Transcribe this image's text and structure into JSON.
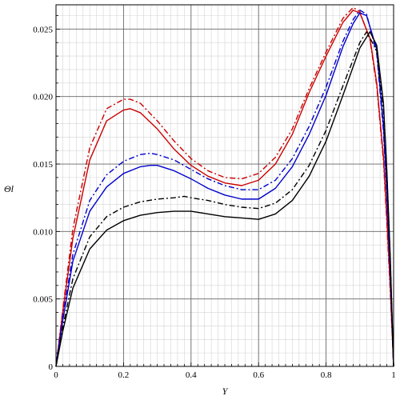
{
  "chart_data": {
    "type": "line",
    "title": "",
    "xlabel": "Y",
    "ylabel": "Θl",
    "xlim": [
      0,
      1
    ],
    "ylim": [
      0,
      0.0268
    ],
    "grid": true,
    "x_ticks": [
      {
        "value": 0,
        "label": "0"
      },
      {
        "value": 0.2,
        "label": "0.2"
      },
      {
        "value": 0.4,
        "label": "0.4"
      },
      {
        "value": 0.6,
        "label": "0.6"
      },
      {
        "value": 0.8,
        "label": "0.8"
      },
      {
        "value": 1,
        "label": "1"
      }
    ],
    "y_ticks": [
      {
        "value": 0,
        "label": "0"
      },
      {
        "value": 0.005,
        "label": "0.005"
      },
      {
        "value": 0.01,
        "label": "0.010"
      },
      {
        "value": 0.015,
        "label": "0.015"
      },
      {
        "value": 0.02,
        "label": "0.020"
      },
      {
        "value": 0.025,
        "label": "0.025"
      }
    ],
    "series": [
      {
        "color": "#cc0000",
        "style": "solid",
        "x": [
          0,
          0.02,
          0.05,
          0.1,
          0.15,
          0.2,
          0.22,
          0.25,
          0.3,
          0.35,
          0.4,
          0.45,
          0.5,
          0.55,
          0.6,
          0.65,
          0.7,
          0.75,
          0.8,
          0.85,
          0.88,
          0.9,
          0.93,
          0.95,
          0.97,
          0.98,
          0.99,
          1
        ],
        "y": [
          0,
          0.004,
          0.0095,
          0.0153,
          0.0182,
          0.019,
          0.0191,
          0.0188,
          0.0176,
          0.0161,
          0.0149,
          0.0141,
          0.0136,
          0.0134,
          0.0138,
          0.015,
          0.0172,
          0.0203,
          0.023,
          0.0255,
          0.0264,
          0.0262,
          0.0243,
          0.021,
          0.0155,
          0.011,
          0.006,
          0
        ]
      },
      {
        "color": "#cc0000",
        "style": "dashdot",
        "x": [
          0,
          0.02,
          0.05,
          0.1,
          0.15,
          0.2,
          0.22,
          0.25,
          0.3,
          0.35,
          0.4,
          0.45,
          0.5,
          0.55,
          0.6,
          0.65,
          0.7,
          0.75,
          0.8,
          0.85,
          0.88,
          0.9,
          0.93,
          0.95,
          0.97,
          0.98,
          0.99,
          1
        ],
        "y": [
          0,
          0.0042,
          0.0102,
          0.0162,
          0.0191,
          0.0198,
          0.0198,
          0.0195,
          0.0182,
          0.0167,
          0.0154,
          0.0145,
          0.014,
          0.0139,
          0.0143,
          0.0155,
          0.0176,
          0.0206,
          0.0233,
          0.0258,
          0.0266,
          0.0263,
          0.0242,
          0.0208,
          0.0152,
          0.0106,
          0.0056,
          0
        ]
      },
      {
        "color": "#0000cc",
        "style": "solid",
        "x": [
          0,
          0.02,
          0.05,
          0.1,
          0.15,
          0.2,
          0.25,
          0.28,
          0.3,
          0.35,
          0.4,
          0.45,
          0.5,
          0.55,
          0.6,
          0.65,
          0.7,
          0.75,
          0.8,
          0.85,
          0.88,
          0.9,
          0.92,
          0.95,
          0.97,
          0.98,
          0.99,
          1
        ],
        "y": [
          0,
          0.0034,
          0.0078,
          0.0115,
          0.0133,
          0.0143,
          0.0148,
          0.0149,
          0.0149,
          0.0145,
          0.0139,
          0.0132,
          0.0127,
          0.0124,
          0.0124,
          0.0132,
          0.0148,
          0.0172,
          0.0201,
          0.0237,
          0.0254,
          0.0262,
          0.026,
          0.0235,
          0.0178,
          0.013,
          0.0072,
          0
        ]
      },
      {
        "color": "#0000cc",
        "style": "dashdot",
        "x": [
          0,
          0.02,
          0.05,
          0.1,
          0.15,
          0.2,
          0.25,
          0.28,
          0.3,
          0.35,
          0.4,
          0.45,
          0.5,
          0.55,
          0.6,
          0.65,
          0.7,
          0.75,
          0.8,
          0.85,
          0.88,
          0.9,
          0.92,
          0.95,
          0.97,
          0.98,
          0.99,
          1
        ],
        "y": [
          0,
          0.0036,
          0.0083,
          0.0123,
          0.0142,
          0.0152,
          0.0157,
          0.0158,
          0.0157,
          0.0153,
          0.0146,
          0.0139,
          0.0134,
          0.0131,
          0.0131,
          0.0138,
          0.0154,
          0.0178,
          0.0207,
          0.0241,
          0.0257,
          0.0264,
          0.0261,
          0.0232,
          0.0174,
          0.0126,
          0.0068,
          0
        ]
      },
      {
        "color": "#000000",
        "style": "solid",
        "x": [
          0,
          0.02,
          0.05,
          0.1,
          0.15,
          0.2,
          0.25,
          0.3,
          0.35,
          0.38,
          0.4,
          0.45,
          0.5,
          0.55,
          0.6,
          0.65,
          0.7,
          0.75,
          0.8,
          0.85,
          0.9,
          0.93,
          0.95,
          0.97,
          0.98,
          0.99,
          1
        ],
        "y": [
          0,
          0.0026,
          0.0058,
          0.0087,
          0.0101,
          0.0108,
          0.0112,
          0.0114,
          0.0115,
          0.0115,
          0.0115,
          0.0113,
          0.0111,
          0.011,
          0.0109,
          0.0113,
          0.0123,
          0.0141,
          0.0167,
          0.0201,
          0.0236,
          0.0248,
          0.0238,
          0.0195,
          0.0145,
          0.0082,
          0
        ]
      },
      {
        "color": "#000000",
        "style": "dashdot",
        "x": [
          0,
          0.02,
          0.05,
          0.1,
          0.15,
          0.2,
          0.25,
          0.3,
          0.35,
          0.38,
          0.4,
          0.45,
          0.5,
          0.55,
          0.6,
          0.65,
          0.7,
          0.75,
          0.8,
          0.85,
          0.9,
          0.92,
          0.95,
          0.97,
          0.98,
          0.99,
          1
        ],
        "y": [
          0,
          0.0029,
          0.0065,
          0.0096,
          0.0111,
          0.0118,
          0.0122,
          0.0124,
          0.0125,
          0.0126,
          0.0125,
          0.0123,
          0.012,
          0.0118,
          0.0117,
          0.0121,
          0.0131,
          0.0149,
          0.0175,
          0.0208,
          0.024,
          0.0248,
          0.0234,
          0.019,
          0.0142,
          0.0079,
          0
        ]
      }
    ]
  },
  "colors": {
    "grid_major": "#666666",
    "grid_minor": "#d4d4d4",
    "frame": "#000000"
  }
}
